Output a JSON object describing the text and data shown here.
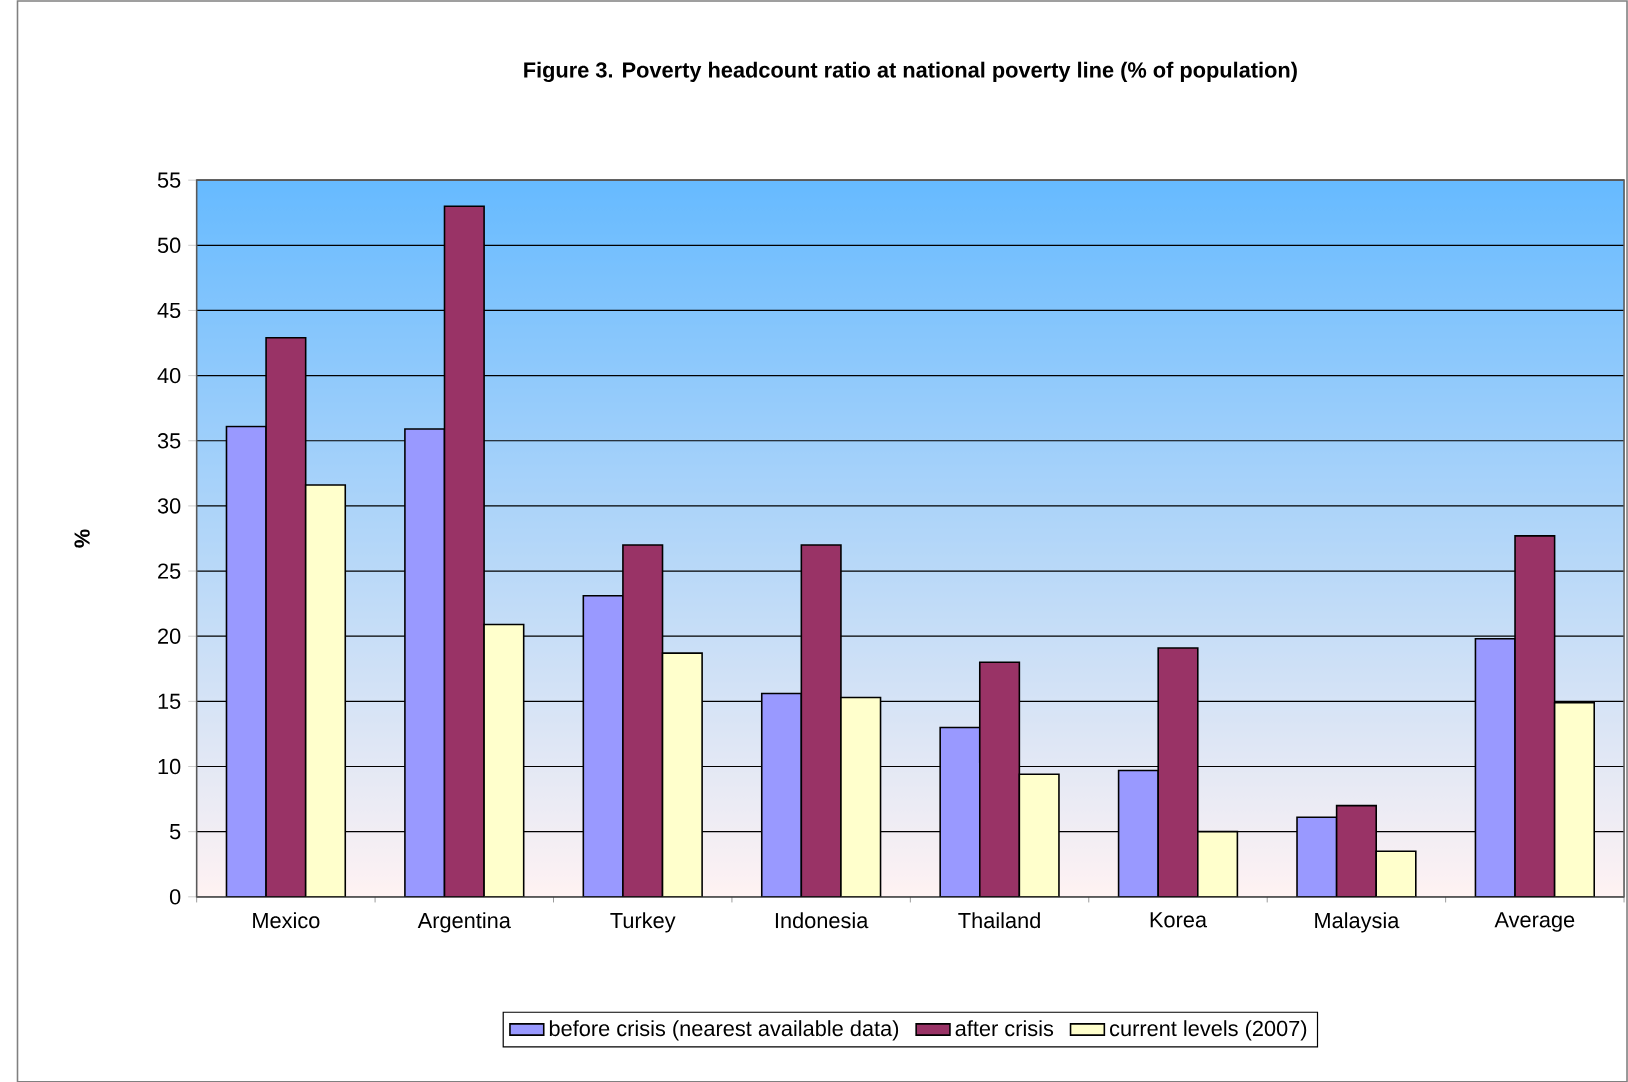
{
  "chart_data": {
    "type": "bar",
    "title": "Figure 3. Poverty headcount ratio at national poverty line (% of population)",
    "ylabel": "%",
    "categories": [
      "Mexico",
      "Argentina",
      "Turkey",
      "Indonesia",
      "Thailand",
      "Korea",
      "Malaysia",
      "Average"
    ],
    "series": [
      {
        "name": "before crisis (nearest available data)",
        "color": "#9999ff",
        "values": [
          36.1,
          35.9,
          23.1,
          15.6,
          13.0,
          9.7,
          6.1,
          19.8
        ]
      },
      {
        "name": "after crisis",
        "color": "#993366",
        "values": [
          42.9,
          53.0,
          27.0,
          27.0,
          18.0,
          19.1,
          7.0,
          27.7
        ]
      },
      {
        "name": "current levels (2007)",
        "color": "#ffffcc",
        "values": [
          31.6,
          20.9,
          18.7,
          15.3,
          9.4,
          5.0,
          3.5,
          14.9
        ]
      }
    ],
    "ylim": [
      0,
      55
    ],
    "yticks": [
      0,
      5,
      10,
      15,
      20,
      25,
      30,
      35,
      40,
      45,
      50,
      55
    ],
    "grid": "y",
    "legend": "bottom"
  }
}
